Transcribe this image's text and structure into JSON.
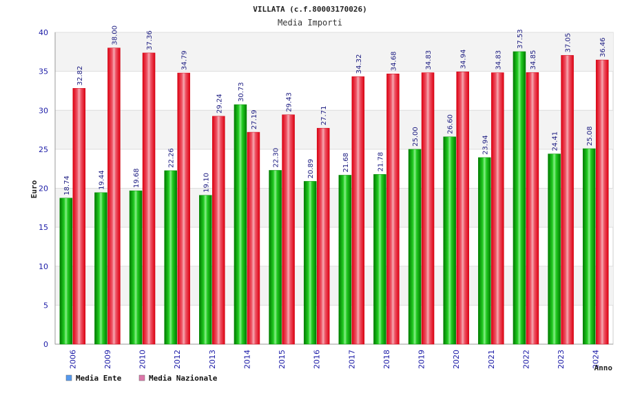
{
  "chart_data": {
    "type": "bar",
    "title": "VILLATA (c.f.80003170026)",
    "subtitle": "Media Importi",
    "xlabel": "Anno",
    "ylabel": "Euro",
    "ylim": [
      0,
      40
    ],
    "yticks": [
      "0",
      "5",
      "10",
      "15",
      "20",
      "25",
      "30",
      "35",
      "40"
    ],
    "grid": true,
    "legend_position": "bottom-left",
    "categories": [
      "2006",
      "2009",
      "2010",
      "2012",
      "2013",
      "2014",
      "2015",
      "2016",
      "2017",
      "2018",
      "2019",
      "2020",
      "2021",
      "2022",
      "2023",
      "2024"
    ],
    "series": [
      {
        "name": "Media Ente",
        "color": "#00bb00",
        "legend_color": "#5599ee",
        "values": [
          18.74,
          19.44,
          19.68,
          22.26,
          19.1,
          30.73,
          22.3,
          20.89,
          21.68,
          21.78,
          25.0,
          26.6,
          23.94,
          37.53,
          24.41,
          25.08
        ],
        "labels": [
          "18.74",
          "19.44",
          "19.68",
          "22.26",
          "19.10",
          "30.73",
          "22.30",
          "20.89",
          "21.68",
          "21.78",
          "25.00",
          "26.60",
          "23.94",
          "37.53",
          "24.41",
          "25.08"
        ]
      },
      {
        "name": "Media Nazionale",
        "color": "#ee1122",
        "legend_color": "#dd77aa",
        "values": [
          32.82,
          38.0,
          37.36,
          34.79,
          29.24,
          27.19,
          29.43,
          27.71,
          34.32,
          34.68,
          34.83,
          34.94,
          34.83,
          34.85,
          37.05,
          36.46
        ],
        "labels": [
          "32.82",
          "38.00",
          "37.36",
          "34.79",
          "29.24",
          "27.19",
          "29.43",
          "27.71",
          "34.32",
          "34.68",
          "34.83",
          "34.94",
          "34.83",
          "34.85",
          "37.05",
          "36.46"
        ]
      }
    ]
  }
}
